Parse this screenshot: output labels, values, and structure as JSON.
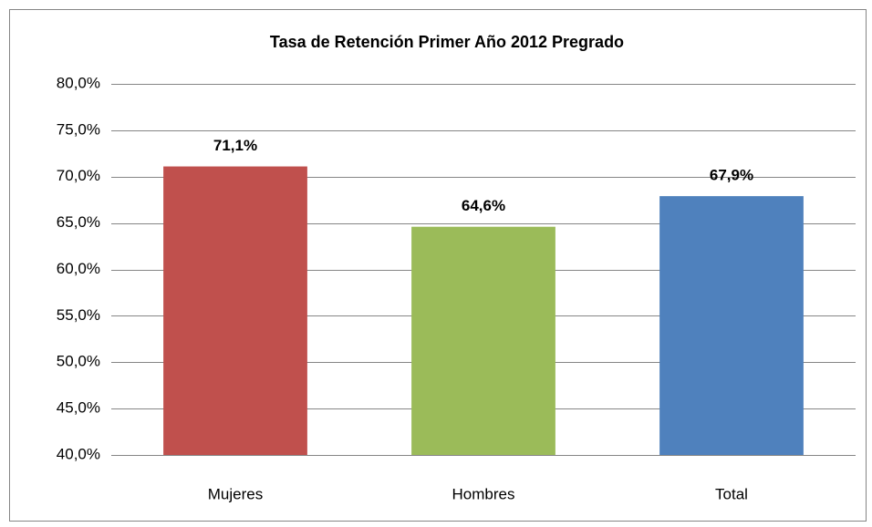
{
  "chart_data": {
    "type": "bar",
    "title": "Tasa de Retención Primer Año 2012 Pregrado",
    "categories": [
      "Mujeres",
      "Hombres",
      "Total"
    ],
    "values": [
      71.1,
      64.6,
      67.9
    ],
    "value_labels": [
      "71,1%",
      "64,6%",
      "67,9%"
    ],
    "colors": [
      "#c0504d",
      "#9bbb59",
      "#4f81bd"
    ],
    "ylim": [
      40,
      80
    ],
    "yticks": [
      {
        "value": 40,
        "label": "40,0%"
      },
      {
        "value": 45,
        "label": "45,0%"
      },
      {
        "value": 50,
        "label": "50,0%"
      },
      {
        "value": 55,
        "label": "55,0%"
      },
      {
        "value": 60,
        "label": "60,0%"
      },
      {
        "value": 65,
        "label": "65,0%"
      },
      {
        "value": 70,
        "label": "70,0%"
      },
      {
        "value": 75,
        "label": "75,0%"
      },
      {
        "value": 80,
        "label": "80,0%"
      }
    ],
    "grid": true
  }
}
